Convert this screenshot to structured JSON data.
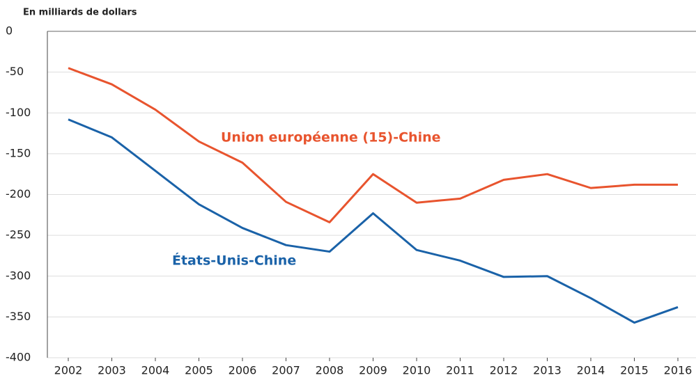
{
  "chart_data": {
    "type": "line",
    "y_label": "En milliards de dollars",
    "categories": [
      "2002",
      "2003",
      "2004",
      "2005",
      "2006",
      "2007",
      "2008",
      "2009",
      "2010",
      "2011",
      "2012",
      "2013",
      "2014",
      "2015",
      "2016"
    ],
    "series": [
      {
        "name": "Union européenne (15)-Chine",
        "color": "#e8542e",
        "values": [
          -45,
          -65,
          -96,
          -135,
          -161,
          -209,
          -234,
          -175,
          -210,
          -205,
          -182,
          -175,
          -192,
          -188,
          -188
        ]
      },
      {
        "name": "États-Unis-Chine",
        "color": "#1a62a8",
        "values": [
          -108,
          -130,
          -171,
          -212,
          -241,
          -262,
          -270,
          -223,
          -268,
          -281,
          -301,
          -300,
          -327,
          -357,
          -338
        ]
      }
    ],
    "ylim": [
      -400,
      0
    ],
    "yticks": [
      0,
      -50,
      -100,
      -150,
      -200,
      -250,
      -300,
      -350,
      -400
    ],
    "grid": true
  }
}
